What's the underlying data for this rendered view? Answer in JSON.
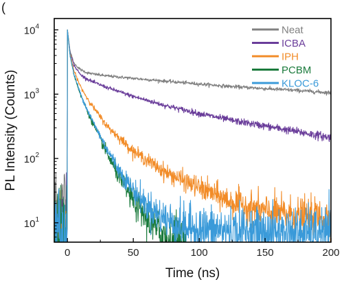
{
  "panel_label": "(",
  "chart_data": {
    "type": "line",
    "xlabel": "Time (ns)",
    "ylabel": "PL Intensity (Counts)",
    "xlim": [
      -10,
      200
    ],
    "ylim": [
      5,
      15000
    ],
    "y_scale": "log",
    "x_ticks": [
      0,
      50,
      100,
      150,
      200
    ],
    "y_ticks": [
      {
        "value": 10,
        "base": "10",
        "exp": "1"
      },
      {
        "value": 100,
        "base": "10",
        "exp": "2"
      },
      {
        "value": 1000,
        "base": "10",
        "exp": "3"
      },
      {
        "value": 10000,
        "base": "10",
        "exp": "4"
      }
    ],
    "legend_position": "top-right",
    "series": [
      {
        "name": "Neat",
        "color": "#808080",
        "x": [
          0,
          2,
          5,
          10,
          15,
          20,
          30,
          50,
          75,
          100,
          125,
          150,
          175,
          200
        ],
        "y": [
          10000,
          4700,
          3000,
          2400,
          2150,
          2050,
          1920,
          1760,
          1590,
          1440,
          1310,
          1220,
          1140,
          1050
        ]
      },
      {
        "name": "ICBA",
        "color": "#6a3d9a",
        "x": [
          0,
          2,
          5,
          10,
          15,
          20,
          30,
          50,
          75,
          100,
          125,
          150,
          175,
          200
        ],
        "y": [
          10000,
          4500,
          2800,
          2000,
          1720,
          1530,
          1270,
          920,
          660,
          500,
          390,
          320,
          260,
          210
        ]
      },
      {
        "name": "IPH",
        "color": "#f28c28",
        "x": [
          0,
          2,
          5,
          10,
          15,
          20,
          30,
          50,
          75,
          100,
          125,
          150,
          175,
          200
        ],
        "y": [
          10000,
          4200,
          2300,
          1300,
          870,
          610,
          320,
          130,
          60,
          35,
          21,
          15,
          13,
          12
        ]
      },
      {
        "name": "PCBM",
        "color": "#1a7a3c",
        "x": [
          0,
          2,
          5,
          10,
          15,
          20,
          30,
          40,
          50,
          60,
          70,
          80,
          90
        ],
        "y": [
          10000,
          4000,
          2000,
          970,
          550,
          330,
          120,
          48,
          22,
          12,
          7,
          5.2,
          4.8
        ]
      },
      {
        "name": "KLOC-6",
        "color": "#3a9ad9",
        "x": [
          0,
          2,
          5,
          10,
          15,
          20,
          30,
          40,
          50,
          60,
          70,
          80,
          90,
          100,
          125,
          150,
          175,
          200
        ],
        "y": [
          10000,
          4000,
          2050,
          1000,
          580,
          350,
          140,
          62,
          32,
          19,
          13,
          10,
          8.5,
          8,
          7.5,
          7.2,
          7,
          7
        ]
      }
    ]
  }
}
